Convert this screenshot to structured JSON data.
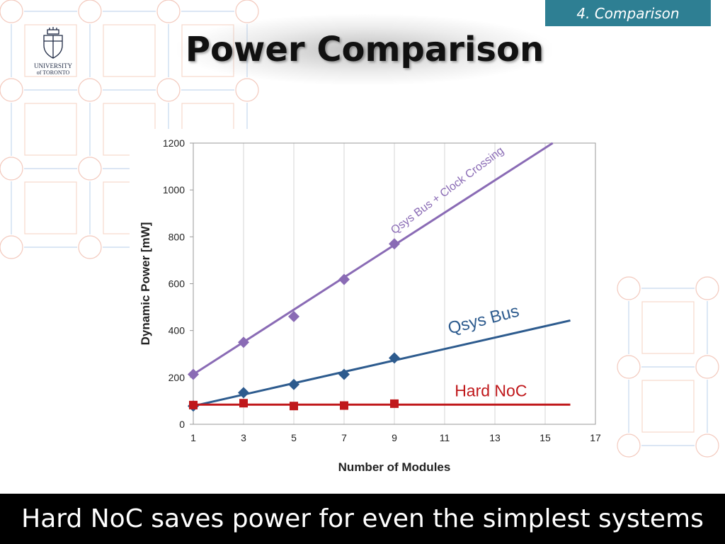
{
  "slide": {
    "section_tag": "4. Comparison",
    "title": "Power Comparison",
    "logo": {
      "line1": "UNIVERSITY",
      "line2": "of TORONTO"
    },
    "footer": "Hard NoC saves power for even the simplest systems"
  },
  "colors": {
    "tag_bg": "#2e7f93",
    "qsys_clock": "#8a6bb5",
    "qsys_bus": "#2d5b8e",
    "hard_noc": "#c0181b"
  },
  "chart_data": {
    "type": "scatter",
    "xlabel": "Number of Modules",
    "ylabel": "Dynamic Power [mW]",
    "xlim": [
      1,
      17
    ],
    "ylim": [
      0,
      1200
    ],
    "xticks": [
      1,
      3,
      5,
      7,
      9,
      11,
      13,
      15,
      17
    ],
    "yticks": [
      0,
      200,
      400,
      600,
      800,
      1000,
      1200
    ],
    "grid": "vertical",
    "legend": "inline labels",
    "series": [
      {
        "name": "Qsys Bus + Clock Crossing",
        "color": "#8a6bb5",
        "marker": "diamond",
        "x": [
          1,
          3,
          5,
          7,
          9
        ],
        "y": [
          213,
          350,
          460,
          618,
          770
        ],
        "trend": {
          "x": [
            1,
            15.3
          ],
          "y": [
            213,
            1200
          ]
        }
      },
      {
        "name": "Qsys Bus",
        "color": "#2d5b8e",
        "marker": "diamond",
        "x": [
          1,
          3,
          5,
          7,
          9
        ],
        "y": [
          78,
          135,
          170,
          213,
          283
        ],
        "trend": {
          "x": [
            1,
            16
          ],
          "y": [
            78,
            443
          ]
        }
      },
      {
        "name": "Hard NoC",
        "color": "#c0181b",
        "marker": "square",
        "x": [
          1,
          3,
          5,
          7,
          9
        ],
        "y": [
          82,
          90,
          78,
          80,
          88
        ],
        "trend": {
          "x": [
            1,
            16
          ],
          "y": [
            84,
            84
          ]
        }
      }
    ]
  }
}
